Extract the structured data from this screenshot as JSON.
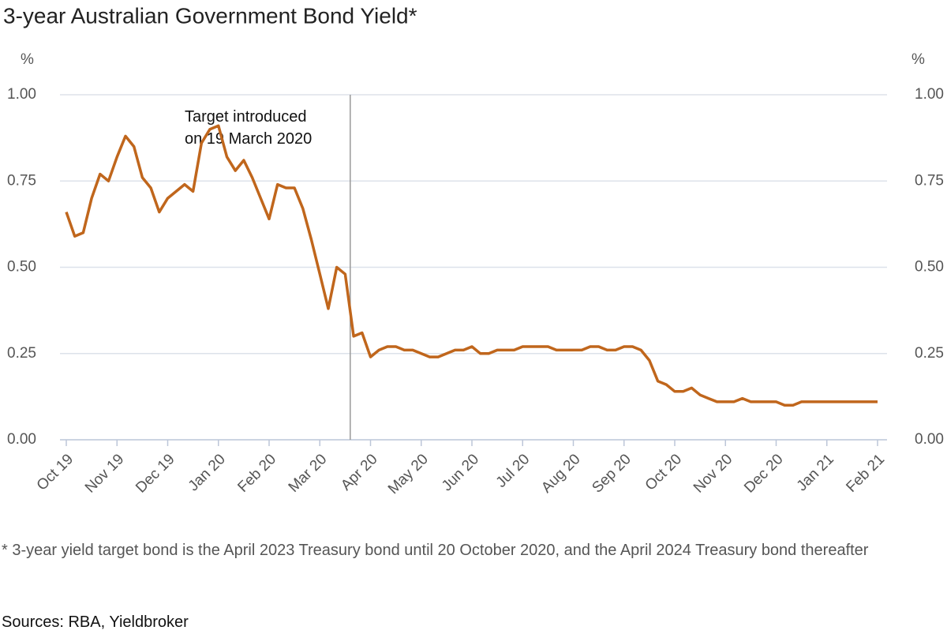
{
  "chart_data": {
    "type": "line",
    "title": "3-year Australian Government Bond Yield*",
    "ylabel": "%",
    "y2label": "%",
    "annotation": "Target introduced on 19 March 2020",
    "footnote": "* 3-year yield target bond is the April 2023 Treasury bond until 20 October 2020, and the April 2024 Treasury bond thereafter",
    "source": "Sources: RBA, Yieldbroker",
    "categories": [
      "Oct 19",
      null,
      null,
      null,
      null,
      null,
      "Nov 19",
      null,
      null,
      null,
      null,
      null,
      "Dec 19",
      null,
      null,
      null,
      null,
      null,
      "Jan 20",
      null,
      null,
      null,
      null,
      null,
      "Feb 20",
      null,
      null,
      null,
      null,
      null,
      "Mar 20",
      null,
      null,
      null,
      null,
      null,
      "Apr 20",
      null,
      null,
      null,
      null,
      null,
      "May 20",
      null,
      null,
      null,
      null,
      null,
      "Jun 20",
      null,
      null,
      null,
      null,
      null,
      "Jul 20",
      null,
      null,
      null,
      null,
      null,
      "Aug 20",
      null,
      null,
      null,
      null,
      null,
      "Sep 20",
      null,
      null,
      null,
      null,
      null,
      "Oct 20",
      null,
      null,
      null,
      null,
      null,
      "Nov 20",
      null,
      null,
      null,
      null,
      null,
      "Dec 20",
      null,
      null,
      null,
      null,
      null,
      "Jan 21",
      null,
      null,
      null,
      null,
      null,
      "Feb 21"
    ],
    "series": [
      {
        "name": "3-year yield",
        "color": "#c0661c",
        "values": [
          0.66,
          0.59,
          0.6,
          0.7,
          0.77,
          0.75,
          0.82,
          0.88,
          0.85,
          0.76,
          0.73,
          0.66,
          0.7,
          0.72,
          0.74,
          0.72,
          0.86,
          0.9,
          0.91,
          0.82,
          0.78,
          0.81,
          0.76,
          0.7,
          0.64,
          0.74,
          0.73,
          0.73,
          0.67,
          0.58,
          0.48,
          0.38,
          0.5,
          0.48,
          0.3,
          0.31,
          0.24,
          0.26,
          0.27,
          0.27,
          0.26,
          0.26,
          0.25,
          0.24,
          0.24,
          0.25,
          0.26,
          0.26,
          0.27,
          0.25,
          0.25,
          0.26,
          0.26,
          0.26,
          0.27,
          0.27,
          0.27,
          0.27,
          0.26,
          0.26,
          0.26,
          0.26,
          0.27,
          0.27,
          0.26,
          0.26,
          0.27,
          0.27,
          0.26,
          0.23,
          0.17,
          0.16,
          0.14,
          0.14,
          0.15,
          0.13,
          0.12,
          0.11,
          0.11,
          0.11,
          0.12,
          0.11,
          0.11,
          0.11,
          0.11,
          0.1,
          0.1,
          0.11,
          0.11,
          0.11,
          0.11,
          0.11,
          0.11,
          0.11,
          0.11,
          0.11,
          0.11
        ]
      }
    ],
    "ylim": [
      0,
      1
    ],
    "yticks": [
      {
        "value": 0,
        "label": "0.00"
      },
      {
        "value": 0.25,
        "label": "0.25"
      },
      {
        "value": 0.5,
        "label": "0.50"
      },
      {
        "value": 0.75,
        "label": "0.75"
      },
      {
        "value": 1,
        "label": "1.00"
      }
    ],
    "y2lim": [
      0,
      1
    ],
    "y2ticks": [
      {
        "value": 0,
        "label": "0.00"
      },
      {
        "value": 0.25,
        "label": "0.25"
      },
      {
        "value": 0.5,
        "label": "0.50"
      },
      {
        "value": 0.75,
        "label": "0.75"
      },
      {
        "value": 1,
        "label": "1.00"
      }
    ],
    "grid": true
  }
}
